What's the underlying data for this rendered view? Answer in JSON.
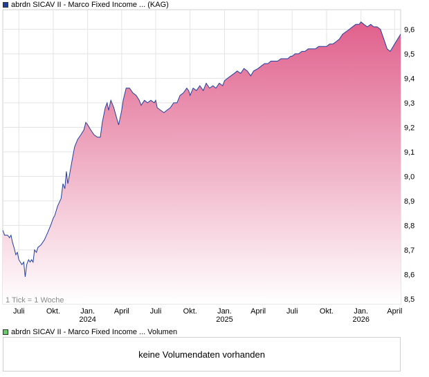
{
  "legend": {
    "price_label": "abrdn SICAV II - Marco Fixed Income ... (KAG)",
    "price_color": "#1f3f9e",
    "volume_label": "abrdn SICAV II - Marco Fixed Income ... Volumen",
    "volume_color": "#66cc66"
  },
  "volume": {
    "message": "keine Volumendaten vorhanden"
  },
  "chart_data": {
    "type": "area",
    "title": "",
    "xlabel": "",
    "ylabel": "",
    "tick_note": "1 Tick = 1 Woche",
    "ylim": [
      8.48,
      9.68
    ],
    "xlim": [
      "2023-05-19",
      "2026-04-17"
    ],
    "y_ticks": [
      8.5,
      8.6,
      8.7,
      8.8,
      8.9,
      9.0,
      9.1,
      9.2,
      9.3,
      9.4,
      9.5,
      9.6
    ],
    "y_tick_labels": [
      "8,5",
      "8,6",
      "8,7",
      "8,8",
      "8,9",
      "9,0",
      "9,1",
      "9,2",
      "9,3",
      "9,4",
      "9,5",
      "9,6"
    ],
    "x_ticks": [
      {
        "date": "2023-07-01",
        "label": "Juli",
        "sub": ""
      },
      {
        "date": "2023-10-01",
        "label": "Okt.",
        "sub": ""
      },
      {
        "date": "2024-01-01",
        "label": "Jan.",
        "sub": "2024"
      },
      {
        "date": "2024-04-01",
        "label": "April",
        "sub": ""
      },
      {
        "date": "2024-07-01",
        "label": "Juli",
        "sub": ""
      },
      {
        "date": "2024-10-01",
        "label": "Okt.",
        "sub": ""
      },
      {
        "date": "2025-01-01",
        "label": "Jan.",
        "sub": "2025"
      },
      {
        "date": "2025-04-01",
        "label": "April",
        "sub": ""
      },
      {
        "date": "2025-07-01",
        "label": "Juli",
        "sub": ""
      },
      {
        "date": "2025-10-01",
        "label": "Okt.",
        "sub": ""
      },
      {
        "date": "2026-01-01",
        "label": "Jan.",
        "sub": "2026"
      },
      {
        "date": "2026-04-01",
        "label": "April",
        "sub": ""
      }
    ],
    "grid": true,
    "series": [
      {
        "line_color": "#1f3f9e",
        "fill_top_color": "#e0608c",
        "fill_bottom_color": "#ffffff",
        "points": [
          [
            "2023-05-19",
            8.78
          ],
          [
            "2023-05-24",
            8.76
          ],
          [
            "2023-06-01",
            8.76
          ],
          [
            "2023-06-06",
            8.75
          ],
          [
            "2023-06-10",
            8.76
          ],
          [
            "2023-06-14",
            8.73
          ],
          [
            "2023-06-18",
            8.71
          ],
          [
            "2023-06-23",
            8.68
          ],
          [
            "2023-06-27",
            8.69
          ],
          [
            "2023-07-01",
            8.66
          ],
          [
            "2023-07-05",
            8.65
          ],
          [
            "2023-07-09",
            8.64
          ],
          [
            "2023-07-14",
            8.65
          ],
          [
            "2023-07-18",
            8.59
          ],
          [
            "2023-07-22",
            8.64
          ],
          [
            "2023-07-27",
            8.66
          ],
          [
            "2023-07-31",
            8.65
          ],
          [
            "2023-08-04",
            8.66
          ],
          [
            "2023-08-08",
            8.65
          ],
          [
            "2023-08-12",
            8.7
          ],
          [
            "2023-08-17",
            8.69
          ],
          [
            "2023-08-21",
            8.71
          ],
          [
            "2023-08-29",
            8.72
          ],
          [
            "2023-09-07",
            8.74
          ],
          [
            "2023-09-16",
            8.77
          ],
          [
            "2023-09-24",
            8.8
          ],
          [
            "2023-10-01",
            8.83
          ],
          [
            "2023-10-05",
            8.84
          ],
          [
            "2023-10-13",
            8.88
          ],
          [
            "2023-10-22",
            8.91
          ],
          [
            "2023-10-27",
            8.97
          ],
          [
            "2023-11-01",
            8.95
          ],
          [
            "2023-11-05",
            9.02
          ],
          [
            "2023-11-09",
            8.97
          ],
          [
            "2023-11-14",
            9.01
          ],
          [
            "2023-11-22",
            9.08
          ],
          [
            "2023-11-27",
            9.12
          ],
          [
            "2023-12-05",
            9.15
          ],
          [
            "2023-12-14",
            9.17
          ],
          [
            "2023-12-22",
            9.19
          ],
          [
            "2023-12-27",
            9.22
          ],
          [
            "2024-01-01",
            9.21
          ],
          [
            "2024-01-09",
            9.19
          ],
          [
            "2024-01-18",
            9.17
          ],
          [
            "2024-01-27",
            9.16
          ],
          [
            "2024-02-04",
            9.16
          ],
          [
            "2024-02-09",
            9.22
          ],
          [
            "2024-02-17",
            9.28
          ],
          [
            "2024-02-22",
            9.3
          ],
          [
            "2024-02-26",
            9.27
          ],
          [
            "2024-03-03",
            9.31
          ],
          [
            "2024-03-11",
            9.28
          ],
          [
            "2024-03-20",
            9.23
          ],
          [
            "2024-03-24",
            9.21
          ],
          [
            "2024-04-01",
            9.27
          ],
          [
            "2024-04-05",
            9.31
          ],
          [
            "2024-04-13",
            9.36
          ],
          [
            "2024-04-22",
            9.36
          ],
          [
            "2024-05-01",
            9.34
          ],
          [
            "2024-05-10",
            9.33
          ],
          [
            "2024-05-18",
            9.31
          ],
          [
            "2024-05-23",
            9.29
          ],
          [
            "2024-06-01",
            9.31
          ],
          [
            "2024-06-09",
            9.3
          ],
          [
            "2024-06-18",
            9.31
          ],
          [
            "2024-06-27",
            9.3
          ],
          [
            "2024-07-01",
            9.31
          ],
          [
            "2024-07-05",
            9.28
          ],
          [
            "2024-07-14",
            9.27
          ],
          [
            "2024-07-23",
            9.26
          ],
          [
            "2024-07-31",
            9.27
          ],
          [
            "2024-08-09",
            9.28
          ],
          [
            "2024-08-18",
            9.3
          ],
          [
            "2024-08-27",
            9.3
          ],
          [
            "2024-09-04",
            9.33
          ],
          [
            "2024-09-13",
            9.34
          ],
          [
            "2024-09-22",
            9.36
          ],
          [
            "2024-09-27",
            9.35
          ],
          [
            "2024-10-01",
            9.33
          ],
          [
            "2024-10-09",
            9.36
          ],
          [
            "2024-10-18",
            9.35
          ],
          [
            "2024-10-27",
            9.37
          ],
          [
            "2024-11-05",
            9.35
          ],
          [
            "2024-11-13",
            9.38
          ],
          [
            "2024-11-22",
            9.36
          ],
          [
            "2024-12-01",
            9.37
          ],
          [
            "2024-12-09",
            9.36
          ],
          [
            "2024-12-18",
            9.38
          ],
          [
            "2024-12-27",
            9.37
          ],
          [
            "2025-01-01",
            9.39
          ],
          [
            "2025-01-09",
            9.4
          ],
          [
            "2025-01-18",
            9.41
          ],
          [
            "2025-01-27",
            9.42
          ],
          [
            "2025-02-04",
            9.43
          ],
          [
            "2025-02-13",
            9.42
          ],
          [
            "2025-02-22",
            9.44
          ],
          [
            "2025-03-03",
            9.43
          ],
          [
            "2025-03-12",
            9.41
          ],
          [
            "2025-03-20",
            9.43
          ],
          [
            "2025-04-01",
            9.44
          ],
          [
            "2025-04-09",
            9.45
          ],
          [
            "2025-04-18",
            9.46
          ],
          [
            "2025-04-27",
            9.46
          ],
          [
            "2025-05-05",
            9.47
          ],
          [
            "2025-05-14",
            9.47
          ],
          [
            "2025-05-23",
            9.47
          ],
          [
            "2025-06-01",
            9.48
          ],
          [
            "2025-06-10",
            9.48
          ],
          [
            "2025-06-19",
            9.48
          ],
          [
            "2025-06-27",
            9.49
          ],
          [
            "2025-07-01",
            9.49
          ],
          [
            "2025-07-09",
            9.5
          ],
          [
            "2025-07-18",
            9.5
          ],
          [
            "2025-07-27",
            9.51
          ],
          [
            "2025-08-04",
            9.51
          ],
          [
            "2025-08-13",
            9.52
          ],
          [
            "2025-08-22",
            9.52
          ],
          [
            "2025-09-01",
            9.52
          ],
          [
            "2025-09-10",
            9.53
          ],
          [
            "2025-09-19",
            9.53
          ],
          [
            "2025-09-27",
            9.53
          ],
          [
            "2025-10-01",
            9.53
          ],
          [
            "2025-10-09",
            9.54
          ],
          [
            "2025-10-18",
            9.54
          ],
          [
            "2025-10-27",
            9.55
          ],
          [
            "2025-11-04",
            9.56
          ],
          [
            "2025-11-13",
            9.58
          ],
          [
            "2025-11-22",
            9.59
          ],
          [
            "2025-12-01",
            9.6
          ],
          [
            "2025-12-09",
            9.61
          ],
          [
            "2025-12-18",
            9.62
          ],
          [
            "2025-12-27",
            9.62
          ],
          [
            "2026-01-01",
            9.63
          ],
          [
            "2026-01-09",
            9.62
          ],
          [
            "2026-01-18",
            9.61
          ],
          [
            "2026-01-27",
            9.62
          ],
          [
            "2026-02-04",
            9.61
          ],
          [
            "2026-02-13",
            9.61
          ],
          [
            "2026-02-22",
            9.6
          ],
          [
            "2026-03-03",
            9.56
          ],
          [
            "2026-03-12",
            9.52
          ],
          [
            "2026-03-20",
            9.51
          ],
          [
            "2026-03-28",
            9.53
          ],
          [
            "2026-04-05",
            9.55
          ],
          [
            "2026-04-17",
            9.58
          ]
        ]
      }
    ]
  }
}
